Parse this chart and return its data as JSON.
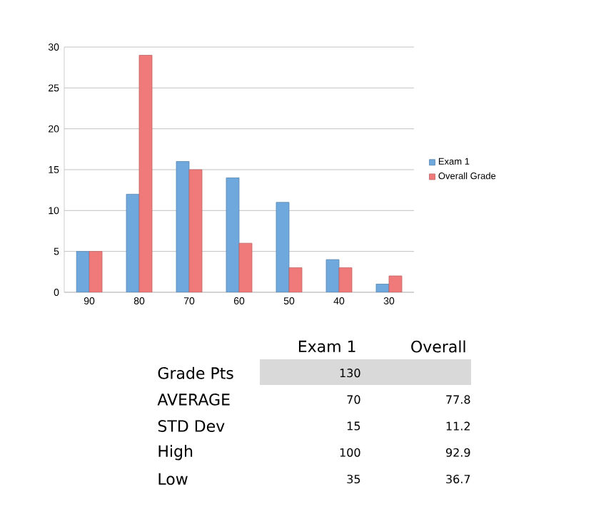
{
  "chart_data": {
    "type": "bar",
    "categories": [
      "90",
      "80",
      "70",
      "60",
      "50",
      "40",
      "30"
    ],
    "series": [
      {
        "name": "Exam 1",
        "color": "#6fa8dc",
        "values": [
          5,
          12,
          16,
          14,
          11,
          4,
          1
        ]
      },
      {
        "name": "Overall Grade",
        "color": "#f07a7a",
        "values": [
          5,
          29,
          15,
          6,
          3,
          3,
          2
        ]
      }
    ],
    "ylim": [
      0,
      30
    ],
    "yticks": [
      0,
      5,
      10,
      15,
      20,
      25,
      30
    ],
    "grid": "y",
    "legend": "right",
    "annotations": [
      "Exam 1",
      "Overall",
      "Grade Pts",
      "130",
      "AVERAGE",
      "70",
      "77.8",
      "STD Dev",
      "15",
      "11.2",
      "High",
      "100",
      "92.9",
      "Low",
      "35",
      "36.7"
    ]
  }
}
